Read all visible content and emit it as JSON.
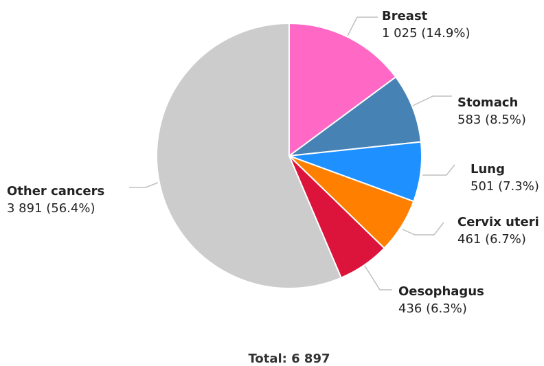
{
  "chart_data": {
    "type": "pie",
    "series": [
      {
        "name": "Breast",
        "value": 1025,
        "label": "1 025 (14.9%)",
        "color": "#ff69c5"
      },
      {
        "name": "Stomach",
        "value": 583,
        "label": "583 (8.5%)",
        "color": "#4682b4"
      },
      {
        "name": "Lung",
        "value": 501,
        "label": "501 (7.3%)",
        "color": "#1e90ff"
      },
      {
        "name": "Cervix uteri",
        "value": 461,
        "label": "461 (6.7%)",
        "color": "#ff7f00"
      },
      {
        "name": "Oesophagus",
        "value": 436,
        "label": "436 (6.3%)",
        "color": "#dc143c"
      },
      {
        "name": "Other cancers",
        "value": 3891,
        "label": "3 891 (56.4%)",
        "color": "#cccccc"
      }
    ],
    "total_label": "Total: 6 897"
  }
}
